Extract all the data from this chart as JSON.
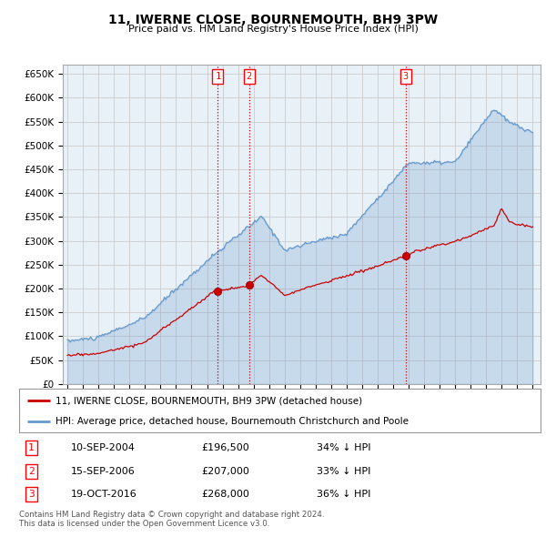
{
  "title": "11, IWERNE CLOSE, BOURNEMOUTH, BH9 3PW",
  "subtitle": "Price paid vs. HM Land Registry's House Price Index (HPI)",
  "ylabel_ticks": [
    "£0",
    "£50K",
    "£100K",
    "£150K",
    "£200K",
    "£250K",
    "£300K",
    "£350K",
    "£400K",
    "£450K",
    "£500K",
    "£550K",
    "£600K",
    "£650K"
  ],
  "ytick_values": [
    0,
    50000,
    100000,
    150000,
    200000,
    250000,
    300000,
    350000,
    400000,
    450000,
    500000,
    550000,
    600000,
    650000
  ],
  "ylim": [
    0,
    670000
  ],
  "xlim_start": 1994.7,
  "xlim_end": 2025.5,
  "transactions": [
    {
      "num": 1,
      "date": "10-SEP-2004",
      "price": 196500,
      "year": 2004.7,
      "pct": "34%",
      "dir": "↓"
    },
    {
      "num": 2,
      "date": "15-SEP-2006",
      "price": 207000,
      "year": 2006.7,
      "pct": "33%",
      "dir": "↓"
    },
    {
      "num": 3,
      "date": "19-OCT-2016",
      "price": 268000,
      "year": 2016.8,
      "pct": "36%",
      "dir": "↓"
    }
  ],
  "legend_line1": "11, IWERNE CLOSE, BOURNEMOUTH, BH9 3PW (detached house)",
  "legend_line2": "HPI: Average price, detached house, Bournemouth Christchurch and Poole",
  "footnote": "Contains HM Land Registry data © Crown copyright and database right 2024.\nThis data is licensed under the Open Government Licence v3.0.",
  "line_color_red": "#cc0000",
  "line_color_blue": "#6699cc",
  "fill_color_blue": "#ddeeff",
  "vline_color": "#cc0000",
  "grid_color": "#cccccc",
  "background_color": "#ffffff",
  "plot_bg_color": "#e8f0f8"
}
